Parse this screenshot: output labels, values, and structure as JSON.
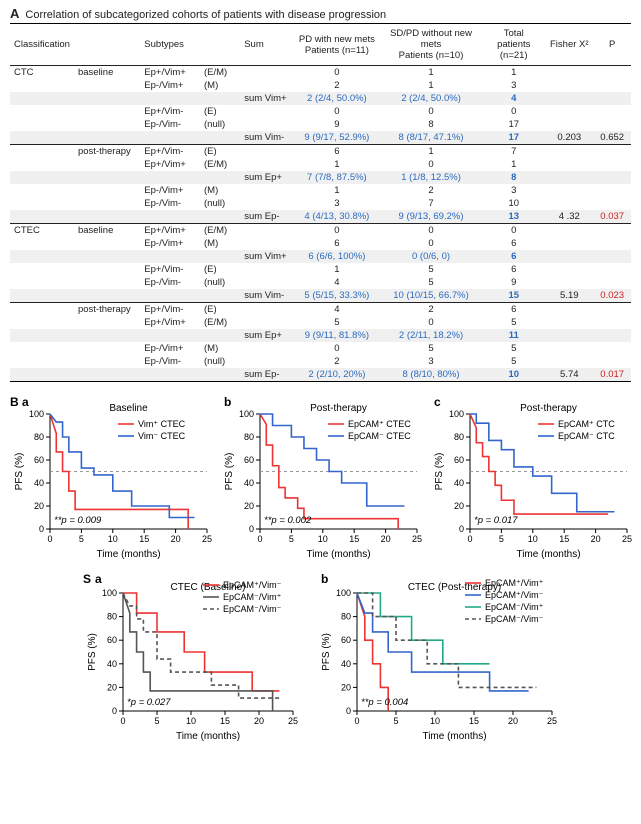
{
  "sectionA": {
    "panel_label": "A",
    "title": "Correlation of subcategorized cohorts of patients with disease progression",
    "headers": {
      "classification": "Classification",
      "subtypes": "Subtypes",
      "sum": "Sum",
      "pd": "PD with new mets",
      "pd_sub": "Patients (n=11)",
      "sd": "SD/PD without new mets",
      "sd_sub": "Patients (n=10)",
      "total": "Total patients",
      "total_sub": "(n=21)",
      "fisher": "Fisher X²",
      "p": "P"
    },
    "blocks": [
      {
        "class": "CTC",
        "time": "baseline",
        "rows": [
          {
            "sub": "Ep+/Vim+",
            "em": "(E/M)",
            "pd": "0",
            "sd": "1",
            "tot": "1"
          },
          {
            "sub": "Ep-/Vim+",
            "em": "(M)",
            "pd": "2",
            "sd": "1",
            "tot": "3"
          }
        ],
        "sum1": {
          "label": "sum Vim+",
          "pd": "2 (2/4, 50.0%)",
          "sd": "2 (2/4, 50.0%)",
          "tot": "4"
        },
        "rows2": [
          {
            "sub": "Ep+/Vim-",
            "em": "(E)",
            "pd": "0",
            "sd": "0",
            "tot": "0"
          },
          {
            "sub": "Ep-/Vim-",
            "em": "(null)",
            "pd": "9",
            "sd": "8",
            "tot": "17"
          }
        ],
        "sum2": {
          "label": "sum Vim-",
          "pd": "9 (9/17, 52.9%)",
          "sd": "8 (8/17, 47.1%)",
          "tot": "17",
          "fx": "0.203",
          "p": "0.652",
          "pred": false
        }
      },
      {
        "class": "",
        "time": "post-therapy",
        "rows": [
          {
            "sub": "Ep+/Vim-",
            "em": "(E)",
            "pd": "6",
            "sd": "1",
            "tot": "7"
          },
          {
            "sub": "Ep+/Vim+",
            "em": "(E/M)",
            "pd": "1",
            "sd": "0",
            "tot": "1"
          }
        ],
        "sum1": {
          "label": "sum Ep+",
          "pd": "7 (7/8, 87.5%)",
          "sd": "1 (1/8, 12.5%)",
          "tot": "8"
        },
        "rows2": [
          {
            "sub": "Ep-/Vim+",
            "em": "(M)",
            "pd": "1",
            "sd": "2",
            "tot": "3"
          },
          {
            "sub": "Ep-/Vim-",
            "em": "(null)",
            "pd": "3",
            "sd": "7",
            "tot": "10"
          }
        ],
        "sum2": {
          "label": "sum Ep-",
          "pd": "4 (4/13, 30.8%)",
          "sd": "9 (9/13, 69.2%)",
          "tot": "13",
          "fx": "4 .32",
          "p": "0.037",
          "pred": true
        }
      },
      {
        "class": "CTEC",
        "time": "baseline",
        "rows": [
          {
            "sub": "Ep+/Vim+",
            "em": "(E/M)",
            "pd": "0",
            "sd": "0",
            "tot": "0"
          },
          {
            "sub": "Ep-/Vim+",
            "em": "(M)",
            "pd": "6",
            "sd": "0",
            "tot": "6"
          }
        ],
        "sum1": {
          "label": "sum Vim+",
          "pd": "6 (6/6, 100%)",
          "sd": "0 (0/6, 0)",
          "tot": "6"
        },
        "rows2": [
          {
            "sub": "Ep+/Vim-",
            "em": "(E)",
            "pd": "1",
            "sd": "5",
            "tot": "6"
          },
          {
            "sub": "Ep-/Vim-",
            "em": "(null)",
            "pd": "4",
            "sd": "5",
            "tot": "9"
          }
        ],
        "sum2": {
          "label": "sum Vim-",
          "pd": "5 (5/15, 33.3%)",
          "sd": "10 (10/15, 66.7%)",
          "tot": "15",
          "fx": "5.19",
          "p": "0.023",
          "pred": true
        }
      },
      {
        "class": "",
        "time": "post-therapy",
        "rows": [
          {
            "sub": "Ep+/Vim-",
            "em": "(E)",
            "pd": "4",
            "sd": "2",
            "tot": "6"
          },
          {
            "sub": "Ep+/Vim+",
            "em": "(E/M)",
            "pd": "5",
            "sd": "0",
            "tot": "5"
          }
        ],
        "sum1": {
          "label": "sum Ep+",
          "pd": "9 (9/11, 81.8%)",
          "sd": "2 (2/11, 18.2%)",
          "tot": "11"
        },
        "rows2": [
          {
            "sub": "Ep-/Vim+",
            "em": "(M)",
            "pd": "0",
            "sd": "5",
            "tot": "5"
          },
          {
            "sub": "Ep-/Vim-",
            "em": "(null)",
            "pd": "2",
            "sd": "3",
            "tot": "5"
          }
        ],
        "sum2": {
          "label": "sum Ep-",
          "pd": "2 (2/10, 20%)",
          "sd": "8 (8/10, 80%)",
          "tot": "10",
          "fx": "5.74",
          "p": "0.017",
          "pred": true
        }
      }
    ]
  },
  "common_axes": {
    "ylabel": "PFS (%)",
    "xlabel": "Time (months)",
    "yticks": [
      0,
      20,
      40,
      60,
      80,
      100
    ],
    "xticks": [
      0,
      5,
      10,
      15,
      20,
      25
    ],
    "xlim": 25,
    "ylim": 100
  },
  "charts_B": [
    {
      "panel": "B",
      "sub": "a",
      "title": "Baseline",
      "pval": "**p = 0.009",
      "legend": [
        {
          "txt": "Vim⁺ CTEC",
          "color": "#e33"
        },
        {
          "txt": "Vim⁻ CTEC",
          "color": "#36c"
        }
      ],
      "series": [
        {
          "color": "#e33",
          "pts": [
            [
              0,
              100
            ],
            [
              1,
              83
            ],
            [
              1,
              67
            ],
            [
              2,
              67
            ],
            [
              2,
              50
            ],
            [
              3,
              50
            ],
            [
              3,
              33
            ],
            [
              4,
              33
            ],
            [
              4,
              17
            ],
            [
              22,
              17
            ],
            [
              22,
              0
            ]
          ]
        },
        {
          "color": "#36c",
          "pts": [
            [
              0,
              100
            ],
            [
              1,
              93
            ],
            [
              2,
              93
            ],
            [
              2,
              80
            ],
            [
              3,
              80
            ],
            [
              3,
              67
            ],
            [
              5,
              67
            ],
            [
              5,
              53
            ],
            [
              7,
              53
            ],
            [
              7,
              47
            ],
            [
              10,
              47
            ],
            [
              10,
              33
            ],
            [
              13,
              33
            ],
            [
              13,
              20
            ],
            [
              19,
              20
            ],
            [
              19,
              10
            ],
            [
              23,
              10
            ]
          ]
        }
      ],
      "h50": 50
    },
    {
      "panel": "",
      "sub": "b",
      "title": "Post-therapy",
      "pval": "**p = 0.002",
      "legend": [
        {
          "txt": "EpCAM⁺ CTEC",
          "color": "#e33"
        },
        {
          "txt": "EpCAM⁻ CTEC",
          "color": "#36c"
        }
      ],
      "series": [
        {
          "color": "#e33",
          "pts": [
            [
              0,
              100
            ],
            [
              1,
              91
            ],
            [
              1,
              73
            ],
            [
              2,
              73
            ],
            [
              2,
              55
            ],
            [
              3,
              55
            ],
            [
              3,
              36
            ],
            [
              4,
              36
            ],
            [
              4,
              27
            ],
            [
              6,
              27
            ],
            [
              6,
              18
            ],
            [
              7,
              18
            ],
            [
              7,
              9
            ],
            [
              22,
              9
            ],
            [
              22,
              0
            ]
          ]
        },
        {
          "color": "#36c",
          "pts": [
            [
              0,
              100
            ],
            [
              2,
              100
            ],
            [
              2,
              90
            ],
            [
              5,
              90
            ],
            [
              5,
              80
            ],
            [
              7,
              80
            ],
            [
              7,
              70
            ],
            [
              9,
              70
            ],
            [
              9,
              60
            ],
            [
              11,
              60
            ],
            [
              11,
              50
            ],
            [
              13,
              50
            ],
            [
              13,
              40
            ],
            [
              17,
              40
            ],
            [
              17,
              20
            ],
            [
              23,
              20
            ]
          ]
        }
      ],
      "h50": 50
    },
    {
      "panel": "",
      "sub": "c",
      "title": "Post-therapy",
      "pval": "*p = 0.017",
      "legend": [
        {
          "txt": "EpCAM⁺ CTC",
          "color": "#e33"
        },
        {
          "txt": "EpCAM⁻ CTC",
          "color": "#36c"
        }
      ],
      "series": [
        {
          "color": "#e33",
          "pts": [
            [
              0,
              100
            ],
            [
              1,
              88
            ],
            [
              1,
              75
            ],
            [
              2,
              75
            ],
            [
              2,
              63
            ],
            [
              3,
              63
            ],
            [
              3,
              50
            ],
            [
              4,
              50
            ],
            [
              4,
              38
            ],
            [
              5,
              38
            ],
            [
              5,
              25
            ],
            [
              7,
              25
            ],
            [
              7,
              13
            ],
            [
              22,
              13
            ],
            [
              22,
              13
            ]
          ]
        },
        {
          "color": "#36c",
          "pts": [
            [
              0,
              100
            ],
            [
              1,
              100
            ],
            [
              1,
              92
            ],
            [
              3,
              92
            ],
            [
              3,
              77
            ],
            [
              5,
              77
            ],
            [
              5,
              69
            ],
            [
              7,
              69
            ],
            [
              7,
              54
            ],
            [
              10,
              54
            ],
            [
              10,
              46
            ],
            [
              13,
              46
            ],
            [
              13,
              31
            ],
            [
              17,
              31
            ],
            [
              17,
              15
            ],
            [
              23,
              15
            ]
          ]
        }
      ],
      "h50": 50
    }
  ],
  "charts_S": [
    {
      "panel": "S",
      "sub": "a",
      "title": "CTEC (Baseline)",
      "pval": "*p = 0.027",
      "legend": [
        {
          "txt": "EpCAM⁺/Vim⁻",
          "color": "#e33",
          "dash": false
        },
        {
          "txt": "EpCAM⁻/Vim⁺",
          "color": "#555",
          "dash": false
        },
        {
          "txt": "EpCAM⁻/Vim⁻",
          "color": "#555",
          "dash": true
        }
      ],
      "series": [
        {
          "color": "#e33",
          "dash": false,
          "pts": [
            [
              0,
              100
            ],
            [
              2,
              100
            ],
            [
              2,
              83
            ],
            [
              5,
              83
            ],
            [
              5,
              67
            ],
            [
              9,
              67
            ],
            [
              9,
              50
            ],
            [
              12,
              50
            ],
            [
              12,
              33
            ],
            [
              19,
              33
            ],
            [
              19,
              17
            ],
            [
              23,
              17
            ]
          ]
        },
        {
          "color": "#555",
          "dash": false,
          "pts": [
            [
              0,
              100
            ],
            [
              1,
              83
            ],
            [
              1,
              67
            ],
            [
              2,
              67
            ],
            [
              2,
              50
            ],
            [
              3,
              50
            ],
            [
              3,
              33
            ],
            [
              4,
              33
            ],
            [
              4,
              17
            ],
            [
              22,
              17
            ],
            [
              22,
              0
            ]
          ]
        },
        {
          "color": "#555",
          "dash": true,
          "pts": [
            [
              0,
              100
            ],
            [
              1,
              89
            ],
            [
              2,
              89
            ],
            [
              2,
              78
            ],
            [
              3,
              78
            ],
            [
              3,
              67
            ],
            [
              5,
              67
            ],
            [
              5,
              44
            ],
            [
              7,
              44
            ],
            [
              7,
              33
            ],
            [
              13,
              33
            ],
            [
              13,
              22
            ],
            [
              17,
              22
            ],
            [
              17,
              11
            ],
            [
              23,
              11
            ]
          ]
        }
      ]
    },
    {
      "panel": "",
      "sub": "b",
      "title": "CTEC (Post-therapy)",
      "pval": "**p = 0.004",
      "legend": [
        {
          "txt": "EpCAM⁺/Vim⁺",
          "color": "#e33",
          "dash": false
        },
        {
          "txt": "EpCAM⁺/Vim⁻",
          "color": "#36c",
          "dash": false
        },
        {
          "txt": "EpCAM⁻/Vim⁺",
          "color": "#2a8",
          "dash": false
        },
        {
          "txt": "EpCAM⁻/Vim⁻",
          "color": "#555",
          "dash": true
        }
      ],
      "series": [
        {
          "color": "#e33",
          "dash": false,
          "pts": [
            [
              0,
              100
            ],
            [
              1,
              80
            ],
            [
              1,
              60
            ],
            [
              2,
              60
            ],
            [
              2,
              40
            ],
            [
              3,
              40
            ],
            [
              3,
              20
            ],
            [
              4,
              20
            ],
            [
              4,
              0
            ]
          ]
        },
        {
          "color": "#36c",
          "dash": false,
          "pts": [
            [
              0,
              100
            ],
            [
              1,
              83
            ],
            [
              2,
              83
            ],
            [
              2,
              67
            ],
            [
              4,
              67
            ],
            [
              4,
              50
            ],
            [
              7,
              50
            ],
            [
              7,
              33
            ],
            [
              17,
              33
            ],
            [
              17,
              17
            ],
            [
              22,
              17
            ]
          ]
        },
        {
          "color": "#2a8",
          "dash": false,
          "pts": [
            [
              0,
              100
            ],
            [
              3,
              100
            ],
            [
              3,
              80
            ],
            [
              7,
              80
            ],
            [
              7,
              60
            ],
            [
              11,
              60
            ],
            [
              11,
              40
            ],
            [
              17,
              40
            ],
            [
              17,
              40
            ]
          ]
        },
        {
          "color": "#555",
          "dash": true,
          "pts": [
            [
              0,
              100
            ],
            [
              2,
              100
            ],
            [
              2,
              80
            ],
            [
              5,
              80
            ],
            [
              5,
              60
            ],
            [
              9,
              60
            ],
            [
              9,
              40
            ],
            [
              13,
              40
            ],
            [
              13,
              20
            ],
            [
              23,
              20
            ]
          ]
        }
      ]
    }
  ]
}
